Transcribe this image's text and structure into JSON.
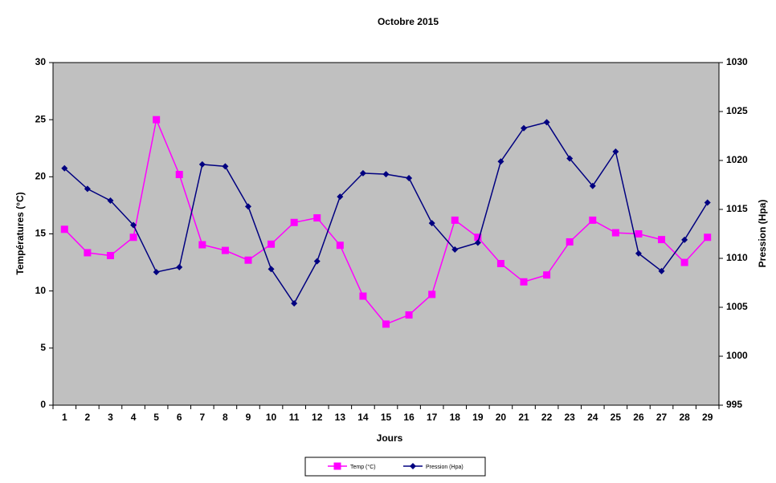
{
  "chart_data": {
    "type": "line",
    "title": "Octobre 2015",
    "x_label": "Jours",
    "y_label": "Températures (°C)",
    "y2_label": "Pression (Hpa)",
    "categories": [
      "1",
      "2",
      "3",
      "4",
      "5",
      "6",
      "7",
      "8",
      "9",
      "10",
      "11",
      "12",
      "13",
      "14",
      "15",
      "16",
      "17",
      "18",
      "19",
      "20",
      "21",
      "22",
      "23",
      "24",
      "25",
      "26",
      "27",
      "28",
      "29"
    ],
    "series": [
      {
        "name": "Temp (°C)",
        "color": "#ff00ff",
        "marker": "square",
        "values": [
          15.4,
          13.35,
          13.1,
          14.7,
          25.0,
          20.2,
          14.05,
          13.55,
          12.7,
          14.1,
          16.0,
          16.4,
          14.0,
          9.55,
          7.1,
          7.9,
          9.7,
          16.2,
          14.7,
          12.4,
          10.8,
          11.4,
          14.3,
          16.2,
          15.1,
          15.0,
          14.5,
          12.5,
          14.7
        ]
      },
      {
        "name": "Pression (Hpa)",
        "color": "#000080",
        "marker": "diamond",
        "axis": "y2",
        "values": [
          1019.2,
          1017.1,
          1015.9,
          1013.4,
          1008.6,
          1009.1,
          1019.6,
          1019.4,
          1015.3,
          1008.9,
          1005.4,
          1009.7,
          1016.3,
          1018.7,
          1018.6,
          1018.2,
          1013.6,
          1010.9,
          1011.6,
          1019.9,
          1023.3,
          1023.9,
          1020.2,
          1017.4,
          1020.9,
          1010.5,
          1008.7,
          1011.9,
          1015.7
        ]
      }
    ],
    "ylim": [
      0,
      30
    ],
    "yticks": [
      0,
      5,
      10,
      15,
      20,
      25,
      30
    ],
    "y2lim": [
      995,
      1030
    ],
    "y2ticks": [
      995,
      1000,
      1005,
      1010,
      1015,
      1020,
      1025,
      1030
    ],
    "plot_background": "#c0c0c0",
    "legend": "bottom"
  }
}
